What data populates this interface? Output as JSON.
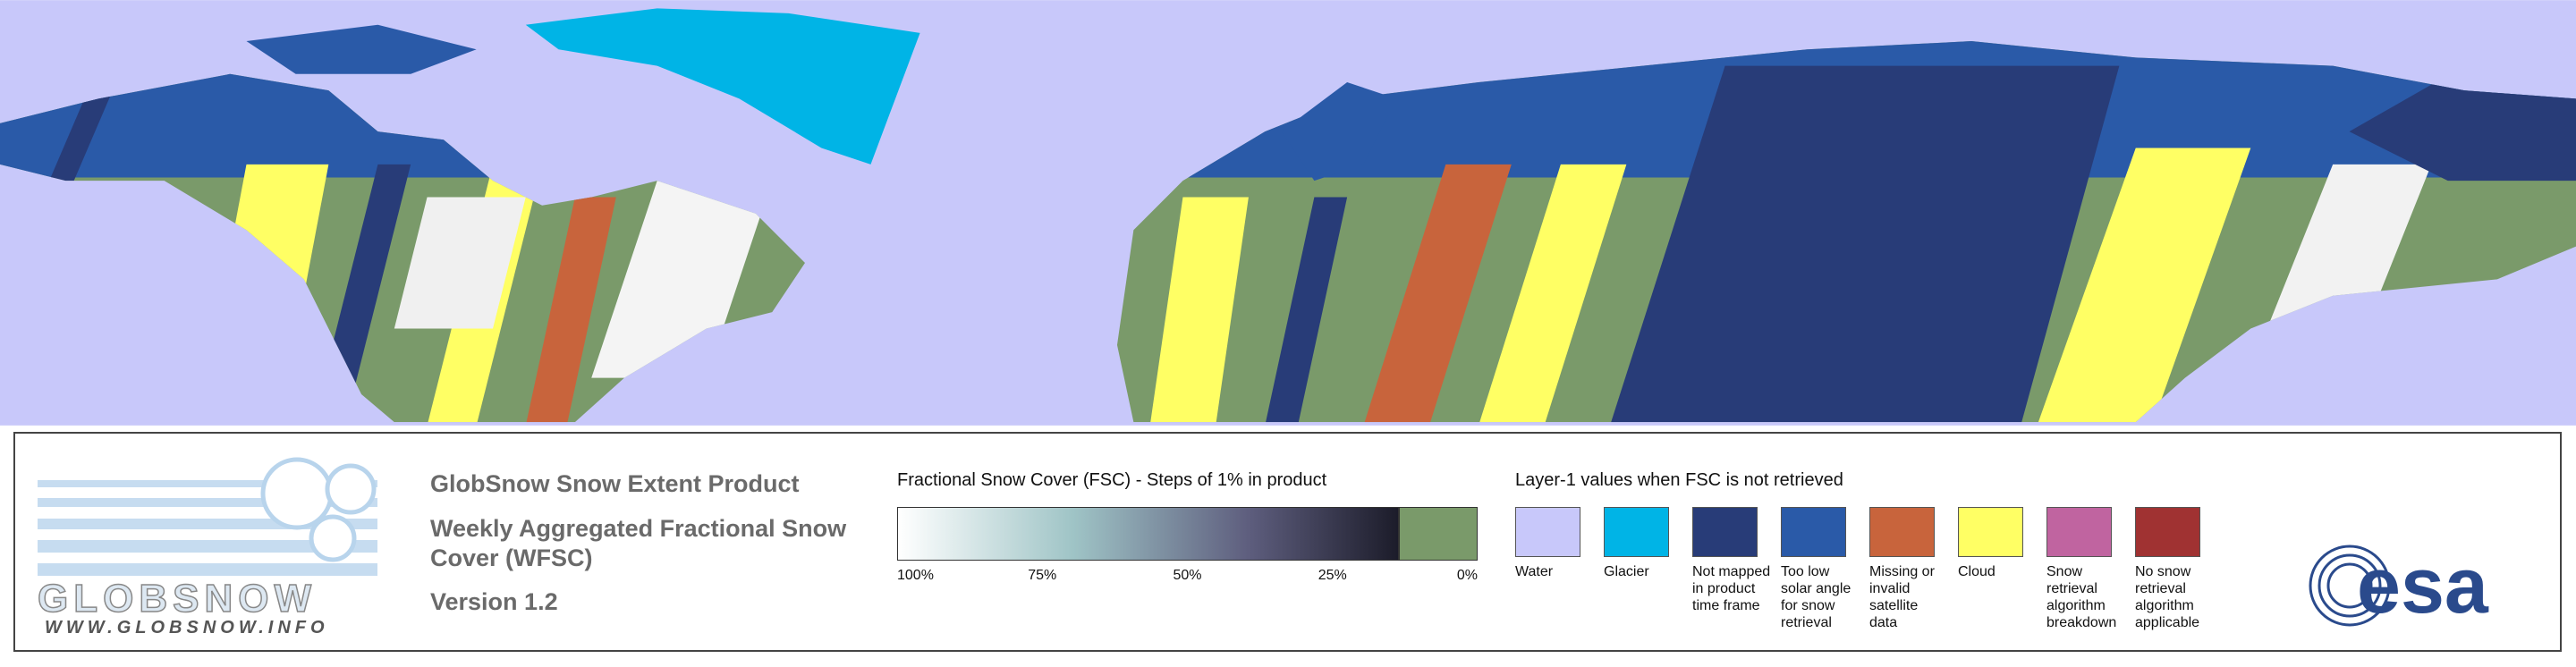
{
  "logo": {
    "wordmark": "GLOBSNOW",
    "url": "WWW.GLOBSNOW.INFO"
  },
  "product": {
    "title": "GlobSnow Snow Extent Product",
    "subtitle": "Weekly Aggregated Fractional Snow Cover (WFSC)",
    "version": "Version 1.2"
  },
  "fsc_scale": {
    "title": "Fractional Snow Cover (FSC) - Steps of 1% in product",
    "ticks": [
      "100%",
      "75%",
      "50%",
      "25%",
      "0%"
    ]
  },
  "layer1": {
    "title": "Layer-1 values when FSC is not retrieved",
    "items": [
      {
        "label": "Water",
        "color": "#c8c8fa"
      },
      {
        "label": "Glacier",
        "color": "#00b4e6"
      },
      {
        "label": "Not mapped in product time frame",
        "color": "#283c78"
      },
      {
        "label": "Too low solar angle for snow retrieval",
        "color": "#2a5aa8"
      },
      {
        "label": "Missing or invalid satellite data",
        "color": "#c8643c"
      },
      {
        "label": "Cloud",
        "color": "#ffff64"
      },
      {
        "label": "Snow retrieval algorithm breakdown",
        "color": "#c064a0"
      },
      {
        "label": "No snow retrieval algorithm applicable",
        "color": "#a03232"
      }
    ]
  },
  "agency": "esa"
}
